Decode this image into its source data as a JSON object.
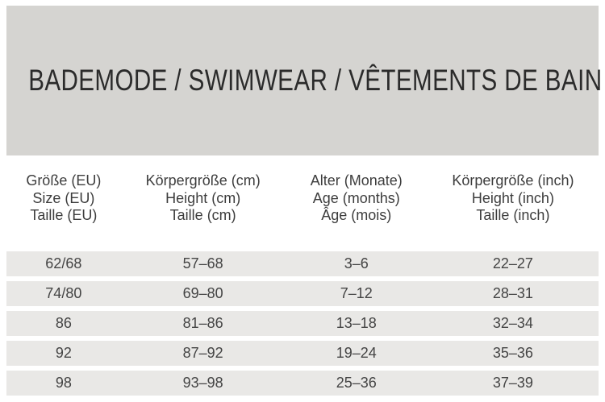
{
  "title": "BADEMODE / SWIMWEAR / VÊTEMENTS DE BAIN",
  "colors": {
    "header_bg": "#d5d4d1",
    "row_bg": "#e9e8e6",
    "title_text": "#2b2b2b",
    "body_text": "#3d3d3d"
  },
  "table": {
    "columns": [
      {
        "lines": [
          "Größe (EU)",
          "Size (EU)",
          "Taille (EU)"
        ]
      },
      {
        "lines": [
          "Körpergröße (cm)",
          "Height (cm)",
          "Taille (cm)"
        ]
      },
      {
        "lines": [
          "Alter (Monate)",
          "Age (months)",
          "Âge (mois)"
        ]
      },
      {
        "lines": [
          "Körpergröße (inch)",
          "Height (inch)",
          "Taille (inch)"
        ]
      }
    ],
    "rows": [
      [
        "62/68",
        "57–68",
        "3–6",
        "22–27"
      ],
      [
        "74/80",
        "69–80",
        "7–12",
        "28–31"
      ],
      [
        "86",
        "81–86",
        "13–18",
        "32–34"
      ],
      [
        "92",
        "87–92",
        "19–24",
        "35–36"
      ],
      [
        "98",
        "93–98",
        "25–36",
        "37–39"
      ]
    ]
  }
}
